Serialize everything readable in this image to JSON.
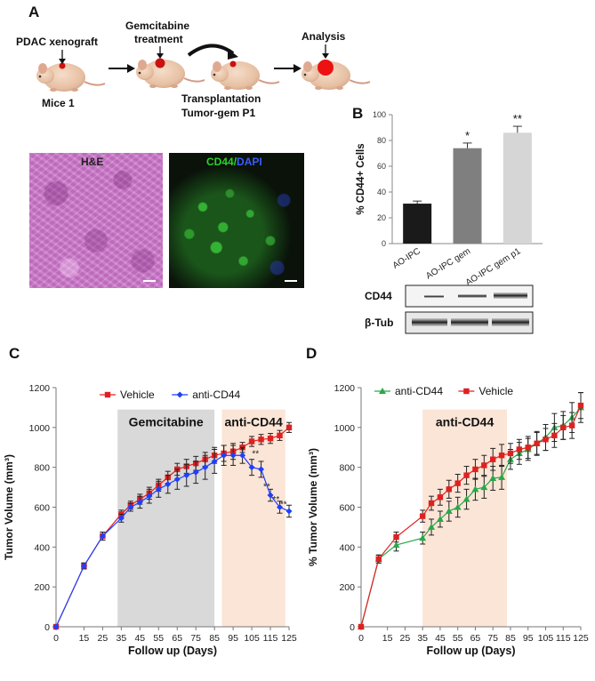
{
  "figure": {
    "panel_a": {
      "letter": "A",
      "labels": {
        "xenograft": "PDAC xenograft",
        "mice": "Mice 1",
        "gemcitabine": "Gemcitabine",
        "treatment": "treatment",
        "transplantation": "Transplantation",
        "tumor_gem": "Tumor-gem P1",
        "analysis": "Analysis"
      },
      "micrographs": {
        "he_label": "H&E",
        "cd44_label": "CD44",
        "slash": "/",
        "dapi_label": "DAPI"
      }
    },
    "panel_b": {
      "letter": "B",
      "blot": {
        "cd44_label": "CD44",
        "tub_label": "β-Tub"
      }
    },
    "panel_c": {
      "letter": "C"
    },
    "panel_d": {
      "letter": "D"
    }
  },
  "chart_data": [
    {
      "id": "B",
      "type": "bar",
      "ylabel": "% CD44+ Cells",
      "ylim": [
        0,
        100
      ],
      "yticks": [
        0,
        20,
        40,
        60,
        80,
        100
      ],
      "categories": [
        "AO-IPC",
        "AO-IPC gem",
        "AO-IPC gem p1"
      ],
      "values": [
        31,
        74,
        86
      ],
      "errors": [
        2,
        4,
        5
      ],
      "significance": [
        "",
        "*",
        "**"
      ],
      "bar_colors": [
        "#1a1a1a",
        "#7f7f7f",
        "#d6d6d6"
      ],
      "grid": false
    },
    {
      "id": "C",
      "type": "line",
      "xlabel": "Follow up (Days)",
      "ylabel": "Tumor Volume (mm³)",
      "xlim": [
        0,
        125
      ],
      "ylim": [
        0,
        1200
      ],
      "xticks": [
        0,
        15,
        25,
        35,
        45,
        55,
        65,
        75,
        85,
        95,
        105,
        115,
        125
      ],
      "yticks": [
        0,
        200,
        400,
        600,
        800,
        1000,
        1200
      ],
      "legend_position": "top-left",
      "shaded_regions": [
        {
          "label": "Gemcitabine",
          "x": [
            33,
            85
          ],
          "color": "#d9d9d9"
        },
        {
          "label": "anti-CD44",
          "x": [
            89,
            123
          ],
          "color": "#fbe5d6"
        }
      ],
      "series": [
        {
          "name": "Vehicle",
          "color": "#e02020",
          "marker": "square",
          "x": [
            0,
            15,
            25,
            35,
            40,
            45,
            50,
            55,
            60,
            65,
            70,
            75,
            80,
            85,
            90,
            95,
            100,
            105,
            110,
            115,
            120,
            125
          ],
          "y": [
            0,
            305,
            455,
            565,
            610,
            640,
            670,
            710,
            750,
            790,
            805,
            820,
            840,
            860,
            870,
            880,
            900,
            930,
            940,
            945,
            960,
            1000
          ],
          "errors": [
            0,
            15,
            20,
            20,
            20,
            25,
            30,
            30,
            30,
            30,
            35,
            35,
            35,
            40,
            40,
            40,
            25,
            25,
            25,
            25,
            25,
            25
          ]
        },
        {
          "name": "anti-CD44",
          "color": "#1f3fff",
          "marker": "diamond",
          "x": [
            0,
            15,
            25,
            35,
            40,
            45,
            50,
            55,
            60,
            65,
            70,
            75,
            80,
            85,
            90,
            95,
            100,
            105,
            110,
            115,
            120,
            125
          ],
          "y": [
            0,
            305,
            455,
            545,
            600,
            625,
            655,
            690,
            715,
            740,
            760,
            775,
            800,
            830,
            860,
            860,
            860,
            800,
            790,
            660,
            600,
            580
          ],
          "errors": [
            0,
            15,
            20,
            20,
            20,
            30,
            35,
            40,
            45,
            50,
            55,
            55,
            60,
            60,
            50,
            50,
            40,
            40,
            40,
            30,
            30,
            30
          ]
        }
      ],
      "annotations": [
        {
          "text": "*",
          "x": 100,
          "y": 870
        },
        {
          "text": "**",
          "x": 107,
          "y": 855
        },
        {
          "text": "**",
          "x": 113,
          "y": 690
        },
        {
          "text": "**",
          "x": 118,
          "y": 625
        },
        {
          "text": "**",
          "x": 122,
          "y": 600
        }
      ]
    },
    {
      "id": "D",
      "type": "line",
      "xlabel": "Follow up (Days)",
      "ylabel": "% Tumor Volume (mm³)",
      "xlim": [
        0,
        125
      ],
      "ylim": [
        0,
        1200
      ],
      "xticks": [
        0,
        15,
        25,
        35,
        45,
        55,
        65,
        75,
        85,
        95,
        105,
        115,
        125
      ],
      "yticks": [
        0,
        200,
        400,
        600,
        800,
        1000,
        1200
      ],
      "legend_position": "top-left",
      "shaded_regions": [
        {
          "label": "anti-CD44",
          "x": [
            35,
            83
          ],
          "color": "#fbe5d6"
        }
      ],
      "series": [
        {
          "name": "anti-CD44",
          "color": "#2aa84a",
          "marker": "triangle",
          "x": [
            0,
            10,
            20,
            35,
            40,
            45,
            50,
            55,
            60,
            65,
            70,
            75,
            80,
            85,
            90,
            95,
            100,
            105,
            110,
            115,
            120,
            125
          ],
          "y": [
            0,
            340,
            410,
            445,
            500,
            540,
            580,
            600,
            640,
            690,
            700,
            745,
            750,
            840,
            870,
            890,
            920,
            950,
            1000,
            1010,
            1050,
            1100
          ],
          "errors": [
            0,
            20,
            30,
            30,
            40,
            40,
            50,
            50,
            50,
            55,
            55,
            60,
            60,
            50,
            55,
            55,
            60,
            65,
            70,
            70,
            75,
            75
          ]
        },
        {
          "name": "Vehicle",
          "color": "#e02020",
          "marker": "square",
          "x": [
            0,
            10,
            20,
            35,
            40,
            45,
            50,
            55,
            60,
            65,
            70,
            75,
            80,
            85,
            90,
            95,
            100,
            105,
            110,
            115,
            120,
            125
          ],
          "y": [
            0,
            340,
            450,
            555,
            620,
            650,
            690,
            720,
            760,
            790,
            810,
            840,
            860,
            870,
            890,
            900,
            920,
            940,
            960,
            1000,
            1010,
            1110
          ],
          "errors": [
            0,
            20,
            25,
            30,
            35,
            40,
            45,
            45,
            45,
            50,
            50,
            55,
            55,
            50,
            50,
            55,
            55,
            55,
            60,
            60,
            65,
            65
          ]
        }
      ]
    }
  ]
}
